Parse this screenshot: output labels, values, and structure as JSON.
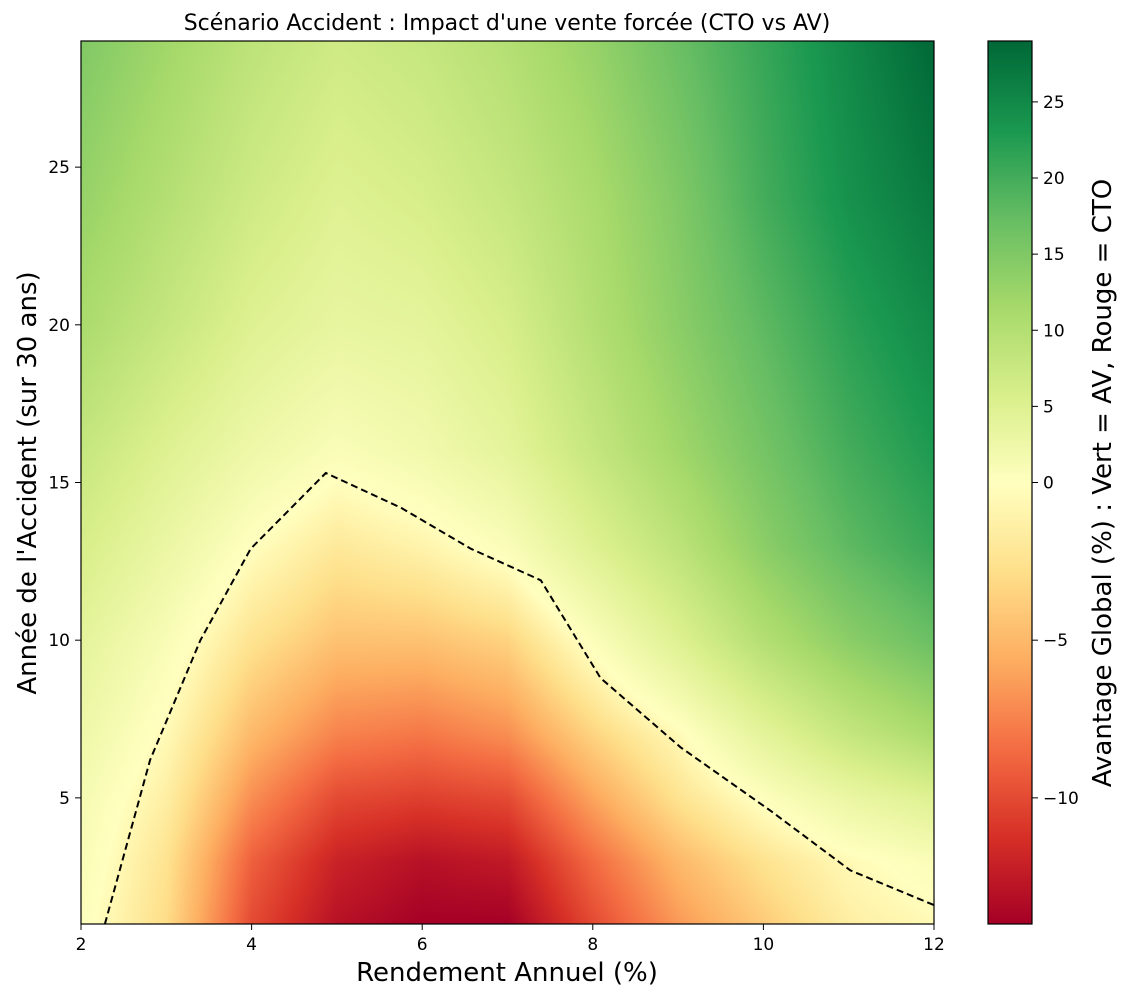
{
  "chart_data": {
    "type": "heatmap",
    "title": "Scénario Accident : Impact d'une vente forcée (CTO vs AV)",
    "xlabel": "Rendement Annuel (%)",
    "ylabel": "Année de l'Accident (sur 30 ans)",
    "colorbar_label": "Avantage Global (%) : Vert = AV, Rouge = CTO",
    "colormap": "RdYlGn",
    "colormap_stops": [
      "#a50026",
      "#d73027",
      "#f46d43",
      "#fdae61",
      "#fee08b",
      "#ffffbf",
      "#d9ef8b",
      "#a6d96a",
      "#66bd63",
      "#1a9850",
      "#006837"
    ],
    "xlim": [
      2,
      12
    ],
    "ylim": [
      1,
      29
    ],
    "clim": [
      -14,
      29
    ],
    "vcenter": 0,
    "xticks": [
      2,
      4,
      6,
      8,
      10,
      12
    ],
    "xtick_labels": [
      "2",
      "4",
      "6",
      "8",
      "10",
      "12"
    ],
    "yticks": [
      5,
      10,
      15,
      20,
      25
    ],
    "ytick_labels": [
      "5",
      "10",
      "15",
      "20",
      "25"
    ],
    "cbar_ticks": [
      -10,
      -5,
      0,
      5,
      10,
      15,
      20,
      25
    ],
    "cbar_tick_labels": [
      "−10",
      "−5",
      "0",
      "5",
      "10",
      "15",
      "20",
      "25"
    ],
    "x": [
      2,
      3,
      4,
      5,
      6,
      7,
      8,
      9,
      10,
      11,
      12
    ],
    "y": [
      1,
      3,
      5,
      7,
      10,
      13,
      16,
      20,
      24,
      29
    ],
    "z": [
      [
        0.5,
        -3,
        -10,
        -13,
        -14,
        -14,
        -10,
        -6.5,
        -4,
        -1.5,
        -0.5
      ],
      [
        1,
        -2.5,
        -9,
        -12,
        -13,
        -12.5,
        -8.5,
        -5,
        -2.5,
        -0.5,
        0.8
      ],
      [
        1.5,
        -1.5,
        -7,
        -10,
        -10.5,
        -10,
        -6,
        -2.5,
        0.3,
        3,
        5
      ],
      [
        2.5,
        -0.5,
        -5,
        -7.5,
        -8,
        -7,
        -3.5,
        -0.5,
        4,
        8,
        11
      ],
      [
        4,
        1,
        -2.5,
        -4.5,
        -4.5,
        -3.5,
        0.5,
        5,
        10,
        14,
        17
      ],
      [
        6,
        3,
        0,
        -2,
        -1,
        0.8,
        5,
        9,
        14,
        18,
        21
      ],
      [
        8,
        5,
        2.5,
        0.8,
        2,
        4,
        8,
        12,
        16,
        20,
        23
      ],
      [
        11,
        8,
        5,
        3.5,
        4,
        6,
        10,
        14,
        18,
        22,
        25
      ],
      [
        13,
        10,
        7,
        5,
        6,
        8,
        11,
        15,
        20,
        24,
        27
      ],
      [
        15,
        12,
        9,
        7,
        8,
        10,
        13,
        17,
        21,
        25,
        29
      ]
    ],
    "contour_zero": {
      "level": 0,
      "style": "dashed",
      "points": [
        [
          2.28,
          1
        ],
        [
          2.81,
          6.2
        ],
        [
          3.4,
          10.0
        ],
        [
          3.99,
          12.9
        ],
        [
          4.87,
          15.3
        ],
        [
          5.75,
          14.2
        ],
        [
          6.57,
          12.9
        ],
        [
          7.39,
          11.9
        ],
        [
          8.09,
          8.8
        ],
        [
          9.03,
          6.6
        ],
        [
          10.08,
          4.6
        ],
        [
          11.02,
          2.7
        ],
        [
          12,
          1.6
        ]
      ]
    }
  }
}
